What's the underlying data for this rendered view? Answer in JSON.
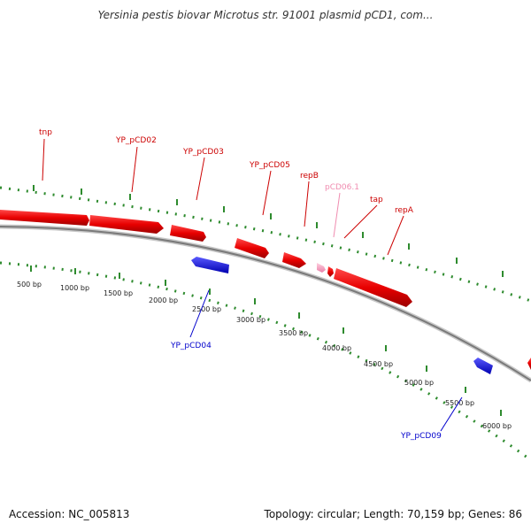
{
  "title": "Yersinia pestis biovar Microtus str. 91001 plasmid pCD1, com...",
  "footer": {
    "accession": "Accession: NC_005813",
    "summary": "Topology: circular; Length: 70,159 bp; Genes: 86"
  },
  "colors": {
    "forward_gene": "#e8000b",
    "reverse_gene": "#1f1fe6",
    "highlight_gene": "#f6a9c4",
    "backbone": "#888888",
    "tick_track": "#2e8b2e"
  },
  "forward_genes": [
    {
      "label": "tnp",
      "color": "#cc0000"
    },
    {
      "label": "YP_pCD02",
      "color": "#cc0000"
    },
    {
      "label": "YP_pCD03",
      "color": "#cc0000"
    },
    {
      "label": "YP_pCD05",
      "color": "#cc0000"
    },
    {
      "label": "repB",
      "color": "#cc0000"
    },
    {
      "label": "pCD06.1",
      "color": "#f08cb0"
    },
    {
      "label": "tap",
      "color": "#cc0000"
    },
    {
      "label": "repA",
      "color": "#cc0000"
    }
  ],
  "reverse_genes": [
    {
      "label": "YP_pCD04",
      "color": "#0000cc"
    },
    {
      "label": "YP_pCD09",
      "color": "#0000cc"
    }
  ],
  "tick_labels": [
    "500 bp",
    "1000 bp",
    "1500 bp",
    "2000 bp",
    "2500 bp",
    "3000 bp",
    "3500 bp",
    "4000 bp",
    "4500 bp",
    "5000 bp",
    "5500 bp",
    "6000 bp"
  ]
}
